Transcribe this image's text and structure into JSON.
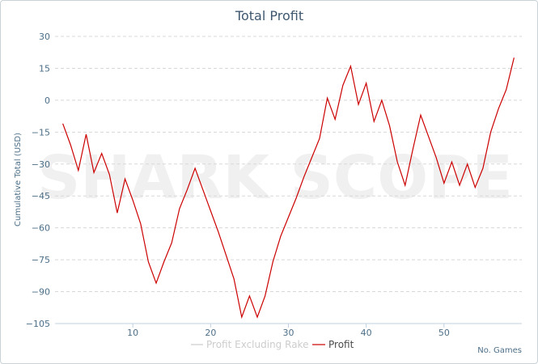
{
  "chart_data": {
    "type": "line",
    "title": "Total Profit",
    "ylabel": "Cumulative Total (USD)",
    "xlabel": "No. Games",
    "xlim": [
      0,
      60
    ],
    "ylim": [
      -105,
      30
    ],
    "x_ticks": [
      10,
      20,
      30,
      40,
      50
    ],
    "y_ticks": [
      30,
      15,
      0,
      -15,
      -30,
      -45,
      -60,
      -75,
      -90,
      -105
    ],
    "y_tick_labels": [
      "30",
      "15",
      "0",
      "−15",
      "−30",
      "−45",
      "−60",
      "−75",
      "−90",
      "−105"
    ],
    "grid": "horizontal dashed",
    "legend_position": "bottom-center",
    "watermark": "SHARK SCOPE",
    "series": [
      {
        "name": "Profit Excluding Rake",
        "color": "#cccccc",
        "values": []
      },
      {
        "name": "Profit",
        "color": "#cc0000",
        "x": [
          1,
          2,
          3,
          4,
          5,
          6,
          7,
          8,
          9,
          10,
          11,
          12,
          13,
          14,
          15,
          16,
          17,
          18,
          19,
          20,
          21,
          22,
          23,
          24,
          25,
          26,
          27,
          28,
          29,
          30,
          31,
          32,
          33,
          34,
          35,
          36,
          37,
          38,
          39,
          40,
          41,
          42,
          43,
          44,
          45,
          46,
          47,
          48,
          49,
          50,
          51,
          52,
          53,
          54,
          55,
          56,
          57,
          58,
          59
        ],
        "values": [
          -11,
          -21,
          -33,
          -16,
          -34,
          -25,
          -35,
          -53,
          -37,
          -47,
          -58,
          -76,
          -86,
          -76,
          -67,
          -51,
          -42,
          -32,
          -42,
          -52,
          -62,
          -73,
          -84,
          -102,
          -92,
          -102,
          -92,
          -76,
          -64,
          -55,
          -46,
          -36,
          -27,
          -18,
          1,
          -9,
          7,
          16,
          -2,
          8,
          -10,
          0,
          -12,
          -29,
          -40,
          -23,
          -7,
          -17,
          -27,
          -39,
          -29,
          -40,
          -30,
          -41,
          -32,
          -15,
          -4,
          5,
          20
        ]
      }
    ]
  }
}
